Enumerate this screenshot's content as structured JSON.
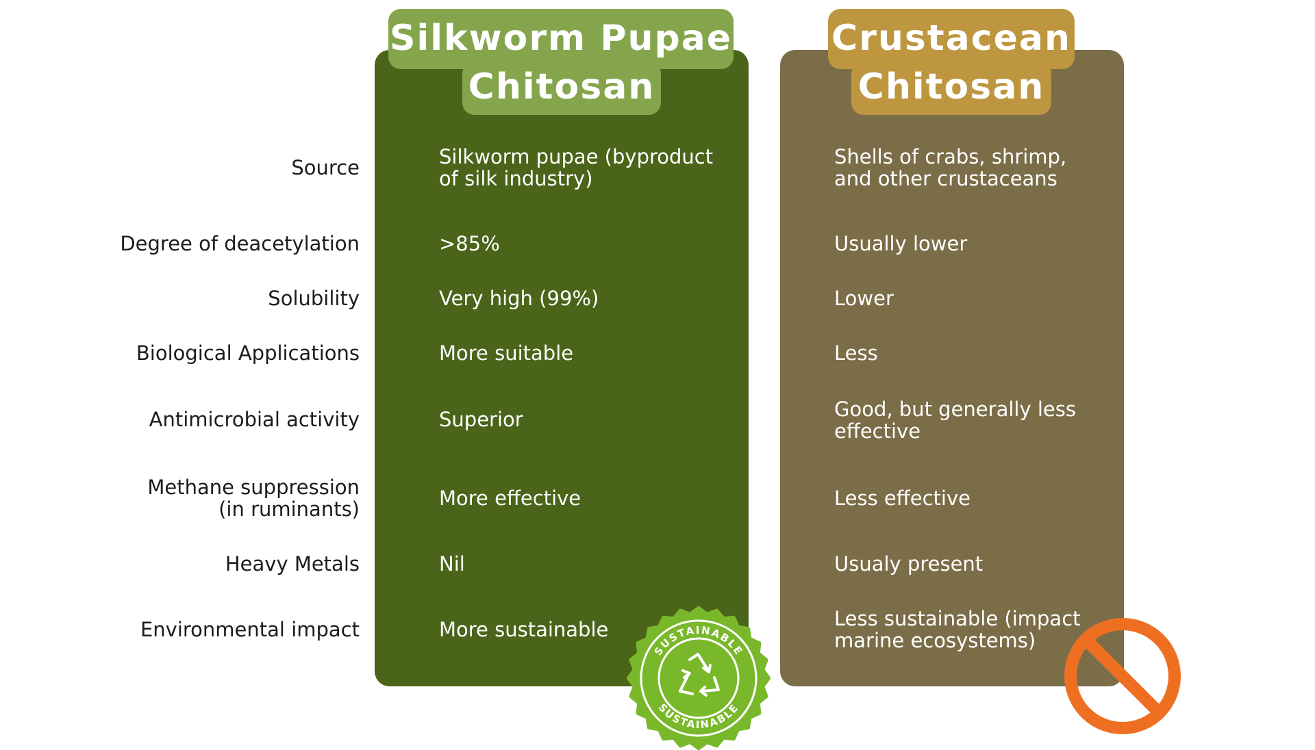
{
  "columns": {
    "silkworm": {
      "title_line1": "Silkworm Pupae",
      "title_line2": "Chitosan",
      "color": "#4a6419",
      "accent": "#85a54c"
    },
    "crustacean": {
      "title_line1": "Crustacean",
      "title_line2": "Chitosan",
      "color": "#7c6d49",
      "accent": "#bd963f"
    }
  },
  "rows": [
    {
      "label": "Source",
      "silkworm": "Silkworm pupae (byproduct of silk industry)",
      "crustacean": "Shells of crabs, shrimp, and other crustaceans"
    },
    {
      "label": "Degree of deacetylation",
      "silkworm": ">85%",
      "crustacean": "Usually lower"
    },
    {
      "label": "Solubility",
      "silkworm": "Very high (99%)",
      "crustacean": "Lower"
    },
    {
      "label": "Biological Applications",
      "silkworm": "More suitable",
      "crustacean": "Less"
    },
    {
      "label": "Antimicrobial activity",
      "silkworm": "Superior",
      "crustacean": "Good, but generally less effective"
    },
    {
      "label": "Methane suppression",
      "label_line2": "(in ruminants)",
      "silkworm": "More effective",
      "crustacean": "Less effective"
    },
    {
      "label": "Heavy Metals",
      "silkworm": "Nil",
      "crustacean": "Usualy present"
    },
    {
      "label": "Environmental impact",
      "silkworm": "More sustainable",
      "crustacean": "Less sustainable (impact marine ecosystems)"
    }
  ],
  "badge": {
    "text_top": "SUSTAINABLE",
    "text_bottom": "SUSTAINABLE",
    "icon": "recycle-icon",
    "color": "#7ab82b"
  },
  "prohibited_icon": {
    "icon": "no-symbol-icon",
    "color": "#ee6f22"
  }
}
